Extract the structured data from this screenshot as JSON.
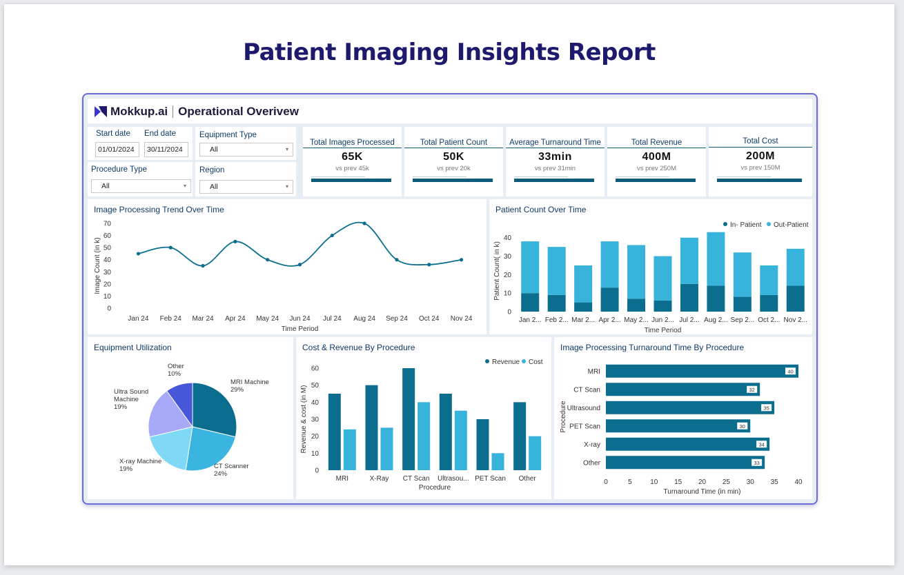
{
  "page_title": "Patient Imaging Insights Report",
  "header": {
    "brand": "Mokkup.ai",
    "title": "Operational Overivew"
  },
  "filters": {
    "start_label": "Start date",
    "start_value": "01/01/2024",
    "end_label": "End date",
    "end_value": "30/11/2024",
    "equipment_label": "Equipment Type",
    "equipment_value": "All",
    "procedure_label": "Procedure Type",
    "procedure_value": "All",
    "region_label": "Region",
    "region_value": "All"
  },
  "kpis": [
    {
      "title": "Total Images Processed",
      "value": "65K",
      "prev": "vs prev 45k"
    },
    {
      "title": "Total Patient Count",
      "value": "50K",
      "prev": "vs prev 20k"
    },
    {
      "title": "Average Turnaround Time",
      "value": "33min",
      "prev": "vs prev 31min"
    },
    {
      "title": "Total Revenue",
      "value": "400M",
      "prev": "vs prev 250M"
    },
    {
      "title": "Total Cost",
      "value": "200M",
      "prev": "vs prev 150M"
    }
  ],
  "colors": {
    "dark": "#0b6e8f",
    "light": "#38b3dc",
    "navy": "#0e3a66",
    "pie": [
      "#0b6e8f",
      "#3ab5df",
      "#7fd8f6",
      "#a8a8f8",
      "#4757d8"
    ]
  },
  "chart_data": [
    {
      "type": "line",
      "title": "Image Processing Trend Over Time",
      "xlabel": "Time Period",
      "ylabel": "Image Count (in k)",
      "categories": [
        "Jan 24",
        "Feb 24",
        "Mar 24",
        "Apr 24",
        "May 24",
        "Jun 24",
        "Jul 24",
        "Aug 24",
        "Sep 24",
        "Oct 24",
        "Nov 24"
      ],
      "values": [
        45,
        50,
        35,
        55,
        40,
        36,
        60,
        70,
        40,
        36,
        40
      ],
      "yticks": [
        0,
        10,
        20,
        30,
        40,
        50,
        60,
        70
      ],
      "ylim": [
        0,
        70
      ]
    },
    {
      "type": "bar",
      "title": "Patient Count Over Time",
      "xlabel": "Time Period",
      "ylabel": "Patient Count( in k)",
      "categories": [
        "Jan 2...",
        "Feb 2...",
        "Mar 2...",
        "Apr 2...",
        "May 2...",
        "Jun 2...",
        "Jul 2...",
        "Aug 2...",
        "Sep 2...",
        "Oct 2...",
        "Nov 2..."
      ],
      "series": [
        {
          "name": "In- Patient",
          "values": [
            10,
            9,
            5,
            13,
            7,
            6,
            15,
            14,
            8,
            9,
            14
          ]
        },
        {
          "name": "Out-Patient",
          "values": [
            28,
            26,
            20,
            25,
            29,
            24,
            25,
            29,
            24,
            16,
            20
          ]
        }
      ],
      "yticks": [
        0,
        10,
        20,
        30,
        40
      ],
      "ylim": [
        0,
        44
      ],
      "stacked": true,
      "legend": "top-right"
    },
    {
      "type": "pie",
      "title": "Equipment Utilization",
      "slices": [
        {
          "label": "MRI Machine",
          "pct": "29%",
          "value": 29
        },
        {
          "label": "CT Scanner",
          "pct": "24%",
          "value": 24
        },
        {
          "label": "X-ray Machine",
          "pct": "19%",
          "value": 19
        },
        {
          "label_lines": [
            "Ultra Sound",
            "Machine"
          ],
          "pct": "19%",
          "value": 19
        },
        {
          "label": "Other",
          "pct": "10%",
          "value": 10
        }
      ]
    },
    {
      "type": "bar",
      "title": "Cost & Revenue By Procedure",
      "xlabel": "Procedure",
      "ylabel": "Revenue & cost (in M)",
      "categories": [
        "MRI",
        "X-Ray",
        "CT Scan",
        "Ultrasou...",
        "PET Scan",
        "Other"
      ],
      "series": [
        {
          "name": "Revenue",
          "values": [
            45,
            50,
            60,
            45,
            30,
            40
          ]
        },
        {
          "name": "Cost",
          "values": [
            24,
            25,
            40,
            35,
            10,
            20
          ]
        }
      ],
      "yticks": [
        0,
        10,
        20,
        30,
        40,
        50,
        60
      ],
      "ylim": [
        0,
        60
      ],
      "legend": "top-right"
    },
    {
      "type": "bar",
      "orientation": "horizontal",
      "title": "Image Processing Turnaround Time By Procedure",
      "xlabel": "Turnaround Time (in min)",
      "ylabel": "Procedure",
      "categories": [
        "MRI",
        "CT Scan",
        "Ultrasound",
        "PET Scan",
        "X-ray",
        "Other"
      ],
      "values": [
        40,
        32,
        35,
        30,
        34,
        33
      ],
      "xticks": [
        0,
        5,
        10,
        15,
        20,
        25,
        30,
        35,
        40
      ],
      "xlim": [
        0,
        40
      ]
    }
  ]
}
